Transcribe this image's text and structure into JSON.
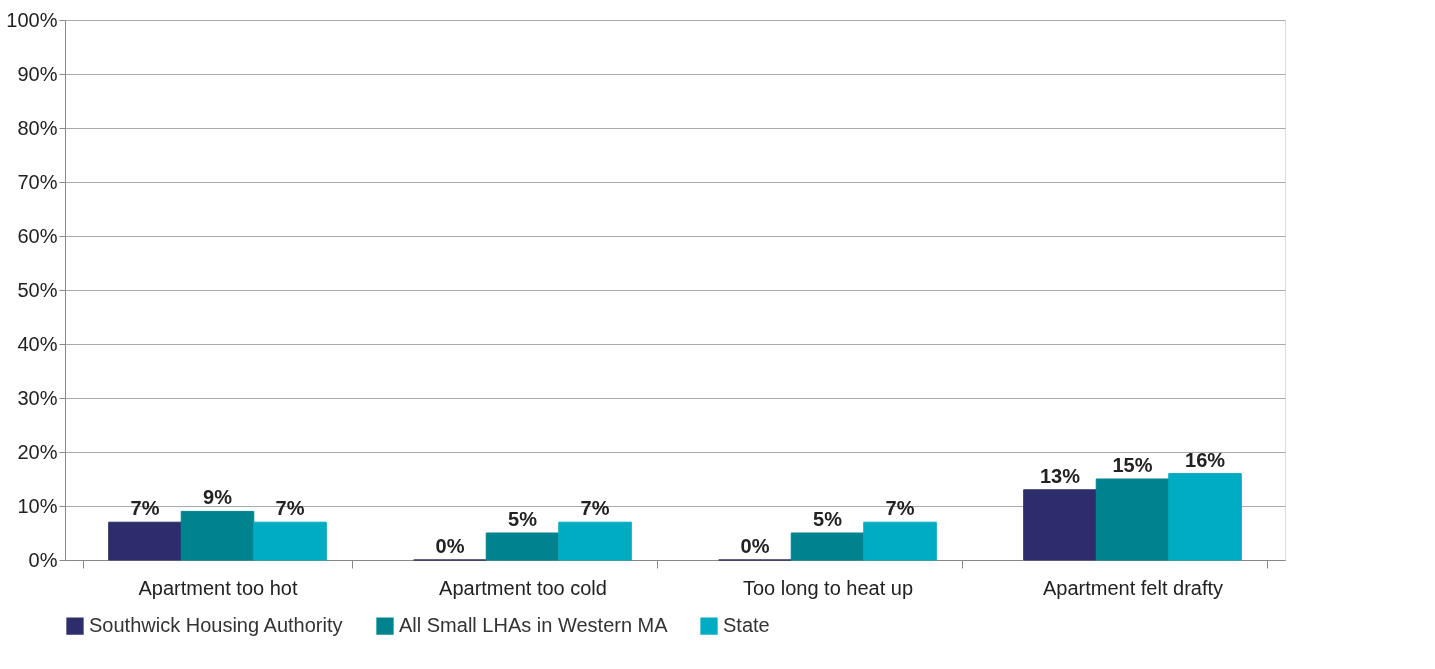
{
  "chart_data": {
    "type": "bar",
    "categories": [
      "Apartment too hot",
      "Apartment too cold",
      "Too long to heat up",
      "Apartment felt drafty"
    ],
    "series": [
      {
        "name": "Southwick Housing Authority",
        "color": "#2e2d6b",
        "values": [
          7,
          0,
          0,
          13
        ],
        "value_labels": [
          "7%",
          "0%",
          "0%",
          "13%"
        ]
      },
      {
        "name": "All Small LHAs in Western MA",
        "color": "#00838f",
        "values": [
          9,
          5,
          5,
          15
        ],
        "value_labels": [
          "9%",
          "5%",
          "5%",
          "15%"
        ]
      },
      {
        "name": "State",
        "color": "#00acc1",
        "values": [
          7,
          7,
          7,
          16
        ],
        "value_labels": [
          "7%",
          "7%",
          "7%",
          "16%"
        ]
      }
    ],
    "ylim": [
      0,
      100
    ],
    "yticks": [
      {
        "value": 0,
        "label": "0%"
      },
      {
        "value": 10,
        "label": "10%"
      },
      {
        "value": 20,
        "label": "20%"
      },
      {
        "value": 30,
        "label": "30%"
      },
      {
        "value": 40,
        "label": "40%"
      },
      {
        "value": 50,
        "label": "50%"
      },
      {
        "value": 60,
        "label": "60%"
      },
      {
        "value": 70,
        "label": "70%"
      },
      {
        "value": 80,
        "label": "80%"
      },
      {
        "value": 90,
        "label": "90%"
      },
      {
        "value": 100,
        "label": "100%"
      }
    ],
    "grid": "y",
    "legend": "bottom"
  }
}
